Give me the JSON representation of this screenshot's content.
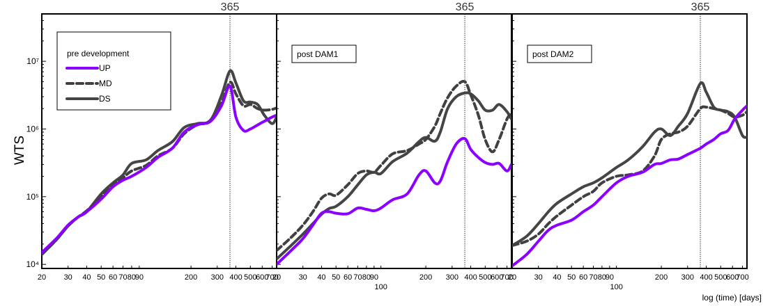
{
  "chart_data": [
    {
      "type": "line",
      "panel_label": "pre development",
      "ylabel": "WTS",
      "yscale": "log",
      "xscale": "log",
      "ylim": [
        10000,
        50000000
      ],
      "xlim": [
        20,
        750
      ],
      "vline": {
        "x": 365,
        "label": "365"
      },
      "x_ticks": [
        "20",
        "30",
        "40",
        "50",
        "60",
        "70",
        "80",
        "90",
        "200",
        "300",
        "400",
        "500",
        "600",
        "700"
      ],
      "y_ticks": [
        {
          "value": 10000,
          "label": "10⁴"
        },
        {
          "value": 100000,
          "label": "10⁵"
        },
        {
          "value": 1000000,
          "label": "10⁶"
        },
        {
          "value": 10000000,
          "label": "10⁷"
        }
      ],
      "legend": {
        "placement": "top-left",
        "title": "pre development",
        "entries": [
          "UP",
          "MD",
          "DS"
        ]
      },
      "series": [
        {
          "name": "UP",
          "color": "#8b00ff",
          "dash": "solid",
          "x": [
            20,
            25,
            30,
            35,
            40,
            50,
            60,
            70,
            80,
            100,
            120,
            150,
            180,
            220,
            270,
            320,
            365,
            400,
            450,
            500,
            560,
            620,
            700,
            750
          ],
          "y": [
            15000,
            24000,
            38000,
            50000,
            60000,
            92000,
            140000,
            175000,
            200000,
            270000,
            380000,
            520000,
            900000,
            1150000,
            1300000,
            2200000,
            4300000,
            1500000,
            950000,
            1000000,
            1150000,
            1300000,
            1500000,
            1600000
          ]
        },
        {
          "name": "MD",
          "color": "#404040",
          "dash": "dashed",
          "x": [
            20,
            25,
            30,
            35,
            40,
            50,
            60,
            70,
            80,
            100,
            120,
            150,
            180,
            220,
            270,
            320,
            365,
            400,
            450,
            500,
            560,
            620,
            700,
            750
          ],
          "y": [
            14000,
            23000,
            37000,
            50000,
            62000,
            100000,
            150000,
            190000,
            240000,
            290000,
            400000,
            520000,
            850000,
            1150000,
            1300000,
            2400000,
            4900000,
            3300000,
            2200000,
            2300000,
            2000000,
            1900000,
            1950000,
            2050000
          ]
        },
        {
          "name": "DS",
          "color": "#454545",
          "dash": "solid",
          "x": [
            20,
            25,
            30,
            35,
            40,
            50,
            60,
            70,
            80,
            100,
            120,
            150,
            180,
            220,
            270,
            320,
            365,
            400,
            450,
            500,
            560,
            620,
            700,
            750
          ],
          "y": [
            14000,
            23000,
            37000,
            50000,
            60000,
            110000,
            160000,
            210000,
            310000,
            350000,
            480000,
            650000,
            1050000,
            1200000,
            1350000,
            3100000,
            7200000,
            4800000,
            2600000,
            2500000,
            2300000,
            1600000,
            1200000,
            1500000
          ]
        }
      ]
    },
    {
      "type": "line",
      "panel_label": "post DAM1",
      "yscale": "log",
      "xscale": "log",
      "ylim": [
        10000,
        50000000
      ],
      "xlim": [
        20,
        750
      ],
      "vline": {
        "x": 365,
        "label": "365"
      },
      "x_ticks": [
        "20",
        "30",
        "40",
        "50",
        "60",
        "70",
        "80",
        "90",
        "100",
        "200",
        "300",
        "400",
        "500",
        "600",
        "700"
      ],
      "series": [
        {
          "name": "UP",
          "color": "#8b00ff",
          "dash": "solid",
          "x": [
            20,
            25,
            30,
            35,
            40,
            45,
            50,
            60,
            70,
            80,
            90,
            100,
            120,
            150,
            180,
            200,
            230,
            250,
            280,
            320,
            365,
            400,
            450,
            500,
            560,
            620,
            700,
            750
          ],
          "y": [
            10000,
            16000,
            24000,
            38000,
            57000,
            60000,
            57000,
            56000,
            68000,
            65000,
            62000,
            68000,
            90000,
            110000,
            210000,
            240000,
            160000,
            170000,
            330000,
            600000,
            720000,
            500000,
            380000,
            320000,
            300000,
            310000,
            240000,
            300000
          ]
        },
        {
          "name": "MD",
          "color": "#404040",
          "dash": "dashed",
          "x": [
            20,
            25,
            30,
            35,
            40,
            45,
            50,
            60,
            70,
            80,
            90,
            100,
            120,
            150,
            180,
            200,
            230,
            250,
            280,
            320,
            365,
            400,
            450,
            500,
            560,
            620,
            700,
            750
          ],
          "y": [
            16000,
            25000,
            38000,
            60000,
            95000,
            110000,
            105000,
            150000,
            220000,
            240000,
            230000,
            290000,
            430000,
            480000,
            600000,
            700000,
            1100000,
            1700000,
            2900000,
            4300000,
            5000000,
            3200000,
            1600000,
            700000,
            460000,
            700000,
            1400000,
            1700000
          ]
        },
        {
          "name": "DS",
          "color": "#454545",
          "dash": "solid",
          "x": [
            20,
            25,
            30,
            35,
            40,
            45,
            50,
            60,
            70,
            80,
            90,
            100,
            120,
            150,
            180,
            200,
            230,
            250,
            280,
            320,
            365,
            400,
            450,
            500,
            560,
            620,
            700,
            750
          ],
          "y": [
            12000,
            19000,
            28000,
            40000,
            55000,
            67000,
            72000,
            100000,
            150000,
            210000,
            230000,
            220000,
            330000,
            440000,
            650000,
            750000,
            660000,
            900000,
            2000000,
            3000000,
            3400000,
            3300000,
            2600000,
            1900000,
            1900000,
            2300000,
            1800000,
            1400000
          ]
        }
      ]
    },
    {
      "type": "line",
      "panel_label": "post DAM2",
      "yscale": "log",
      "xscale": "log",
      "xlabel": "log (time) [days]",
      "ylim": [
        10000,
        50000000
      ],
      "xlim": [
        20,
        750
      ],
      "vline": {
        "x": 365,
        "label": "365"
      },
      "x_ticks": [
        "20",
        "30",
        "40",
        "50",
        "60",
        "70",
        "80",
        "90",
        "100",
        "200",
        "300",
        "400",
        "500",
        "600",
        "700"
      ],
      "series": [
        {
          "name": "UP",
          "color": "#8b00ff",
          "dash": "solid",
          "x": [
            20,
            25,
            30,
            35,
            40,
            50,
            60,
            70,
            80,
            100,
            120,
            150,
            180,
            200,
            230,
            260,
            300,
            365,
            400,
            450,
            500,
            560,
            620,
            700,
            750
          ],
          "y": [
            9500,
            14000,
            22000,
            32000,
            38000,
            45000,
            60000,
            75000,
            100000,
            160000,
            200000,
            230000,
            300000,
            310000,
            350000,
            360000,
            420000,
            520000,
            600000,
            700000,
            850000,
            950000,
            1400000,
            1900000,
            2200000
          ]
        },
        {
          "name": "MD",
          "color": "#404040",
          "dash": "dashed",
          "x": [
            20,
            25,
            30,
            35,
            40,
            50,
            60,
            70,
            80,
            100,
            120,
            150,
            180,
            200,
            230,
            260,
            300,
            365,
            400,
            450,
            500,
            560,
            620,
            700,
            750
          ],
          "y": [
            19000,
            22000,
            28000,
            40000,
            52000,
            75000,
            100000,
            120000,
            160000,
            200000,
            210000,
            240000,
            400000,
            700000,
            850000,
            900000,
            1100000,
            2000000,
            2100000,
            2000000,
            1900000,
            1700000,
            1500000,
            1600000,
            1800000
          ]
        },
        {
          "name": "DS",
          "color": "#454545",
          "dash": "solid",
          "x": [
            20,
            25,
            30,
            35,
            40,
            50,
            60,
            70,
            80,
            100,
            120,
            150,
            180,
            200,
            230,
            260,
            300,
            365,
            400,
            450,
            500,
            560,
            620,
            700,
            750
          ],
          "y": [
            19000,
            26000,
            40000,
            60000,
            80000,
            110000,
            140000,
            160000,
            190000,
            270000,
            350000,
            550000,
            900000,
            1000000,
            800000,
            1100000,
            1700000,
            4700000,
            3500000,
            2100000,
            1900000,
            1800000,
            1500000,
            800000,
            760000
          ]
        }
      ]
    }
  ]
}
